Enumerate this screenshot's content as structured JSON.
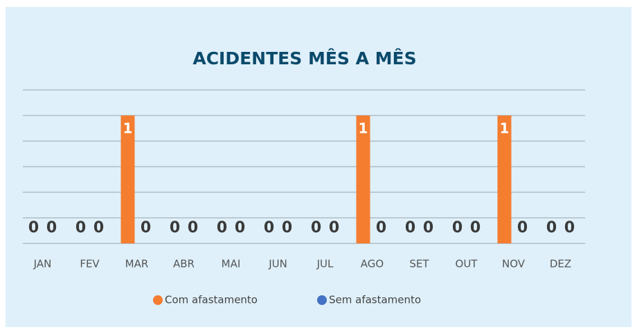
{
  "chart_data": {
    "type": "bar",
    "title": "ACIDENTES MÊS A MÊS",
    "categories": [
      "JAN",
      "FEV",
      "MAR",
      "ABR",
      "MAI",
      "JUN",
      "JUL",
      "AGO",
      "SET",
      "OUT",
      "NOV",
      "DEZ"
    ],
    "series": [
      {
        "name": "Com afastamento",
        "color": "#f47d30",
        "values": [
          0,
          0,
          1,
          0,
          0,
          0,
          0,
          1,
          0,
          0,
          1,
          0
        ]
      },
      {
        "name": "Sem afastamento",
        "color": "#4472c4",
        "values": [
          0,
          0,
          0,
          0,
          0,
          0,
          0,
          0,
          0,
          0,
          0,
          0
        ]
      }
    ],
    "ylim": [
      0,
      1.2
    ],
    "yticks": [
      0,
      0.2,
      0.4,
      0.6,
      0.8,
      1,
      1.2
    ],
    "grid": true,
    "legend": "bottom"
  }
}
